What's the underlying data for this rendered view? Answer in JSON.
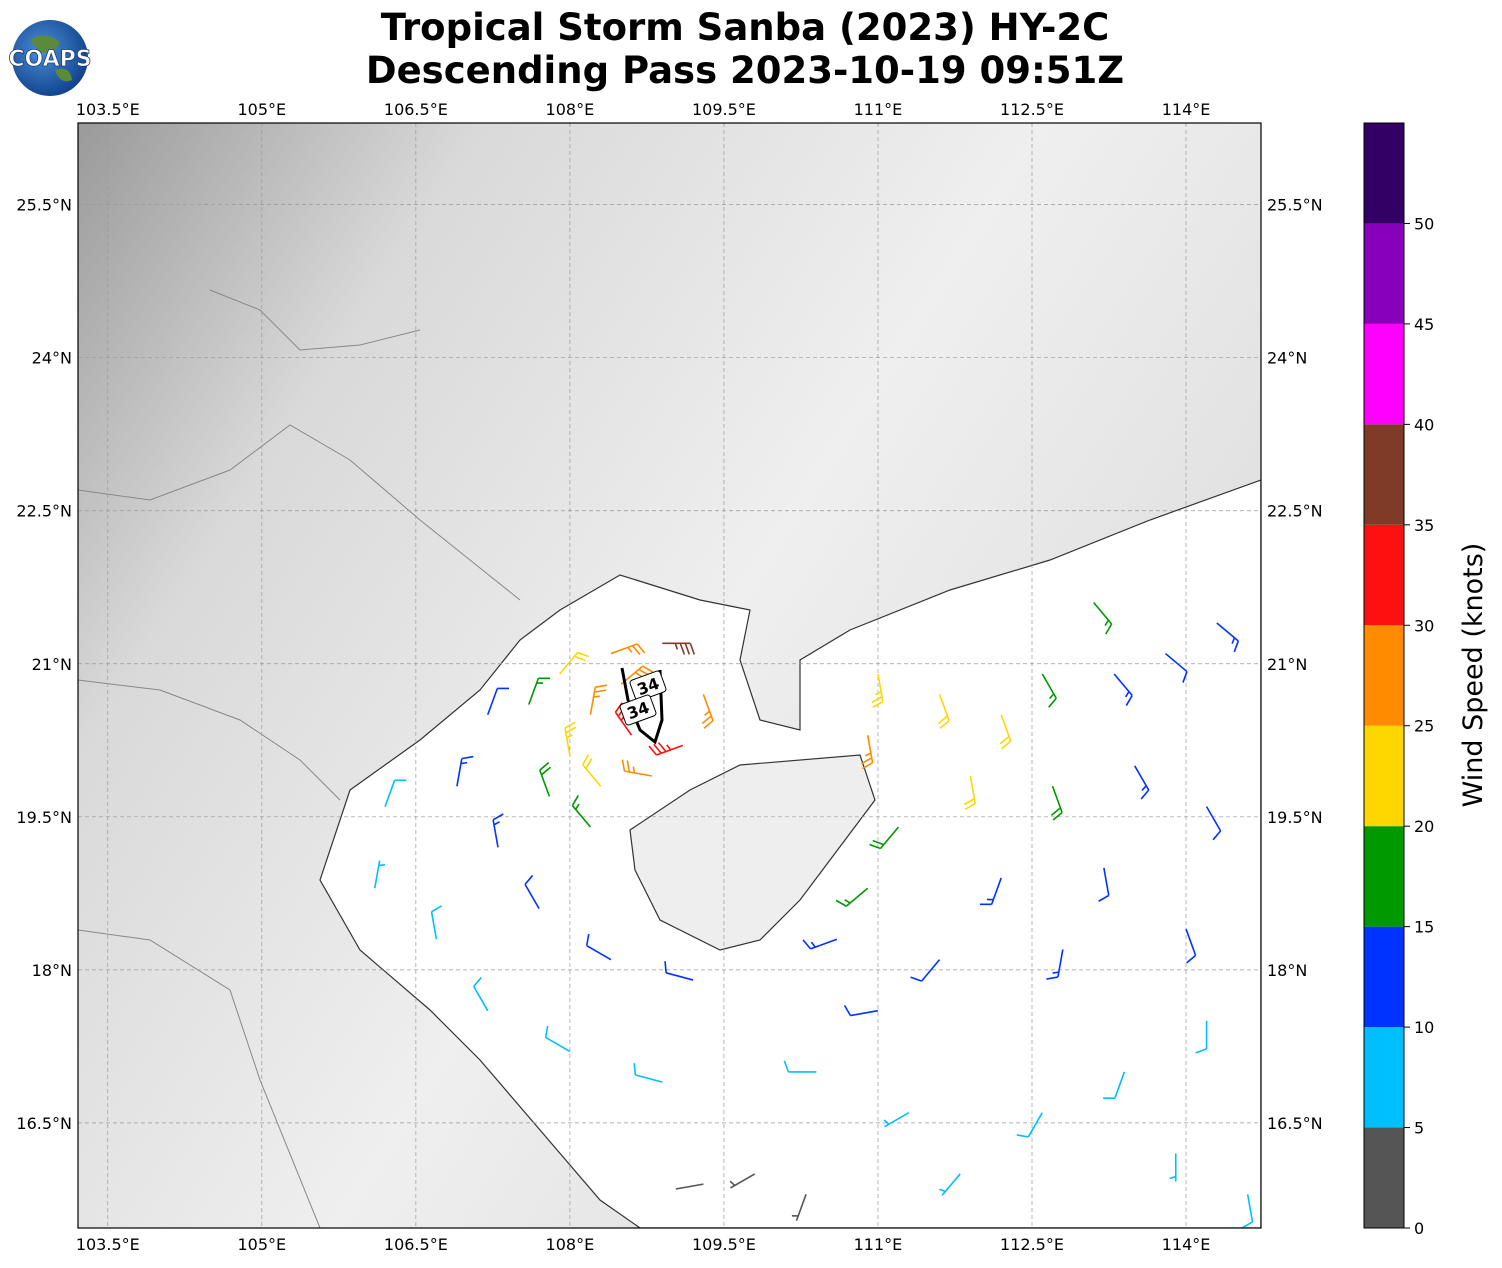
{
  "logo": "COAPS",
  "chart_data": {
    "type": "wind-barbs",
    "title": "Tropical Storm Sanba (2023) HY-2C",
    "subtitle": "Descending Pass 2023-10-19 09:51Z",
    "xlim": [
      103.21,
      114.73
    ],
    "ylim": [
      15.47,
      26.3
    ],
    "xticks": [
      {
        "value": 103.5,
        "label": "103.5°E"
      },
      {
        "value": 105,
        "label": "105°E"
      },
      {
        "value": 106.5,
        "label": "106.5°E"
      },
      {
        "value": 108,
        "label": "108°E"
      },
      {
        "value": 109.5,
        "label": "109.5°E"
      },
      {
        "value": 111,
        "label": "111°E"
      },
      {
        "value": 112.5,
        "label": "112.5°E"
      },
      {
        "value": 114,
        "label": "114°E"
      }
    ],
    "yticks": [
      {
        "value": 16.5,
        "label": "16.5°N"
      },
      {
        "value": 18,
        "label": "18°N"
      },
      {
        "value": 19.5,
        "label": "19.5°N"
      },
      {
        "value": 21,
        "label": "21°N"
      },
      {
        "value": 22.5,
        "label": "22.5°N"
      },
      {
        "value": 24,
        "label": "24°N"
      },
      {
        "value": 25.5,
        "label": "25.5°N"
      }
    ],
    "grid": true,
    "wind_radius_labels": [
      34,
      34
    ],
    "colorbar": {
      "label": "Wind Speed (knots)",
      "lim": [
        0,
        55
      ],
      "ticks": [
        0,
        5,
        10,
        15,
        20,
        25,
        30,
        35,
        40,
        45,
        50
      ],
      "bounds": [
        0,
        5,
        10,
        15,
        20,
        25,
        30,
        35,
        40,
        45,
        50,
        55
      ],
      "colors": [
        "#555555",
        "#00bfff",
        "#0033ff",
        "#009900",
        "#ffd700",
        "#ff8c00",
        "#ff1010",
        "#7f3a28",
        "#ff00ff",
        "#8800bb",
        "#330066"
      ]
    },
    "barbs": {
      "lon": [
        108.6,
        109.1,
        108.5,
        109.3,
        108.4,
        108.9,
        108.2,
        108.8,
        107.9,
        108.0,
        108.3,
        107.6,
        107.8,
        108.2,
        107.2,
        106.9,
        107.3,
        107.7,
        108.4,
        109.2,
        106.2,
        106.1,
        106.7,
        107.2,
        108.0,
        108.9,
        109.8,
        110.3,
        109.3,
        110.4,
        111.0,
        110.6,
        110.9,
        111.2,
        111.0,
        111.6,
        112.2,
        111.9,
        110.9,
        112.6,
        113.1,
        112.7,
        113.3,
        113.8,
        114.3,
        113.5,
        114.2,
        113.2,
        114.0,
        112.8,
        112.2,
        111.6,
        114.2,
        113.4,
        112.6,
        113.9,
        111.8,
        114.6,
        111.3
      ],
      "lat": [
        20.3,
        20.2,
        20.8,
        20.7,
        21.1,
        21.2,
        20.5,
        19.9,
        20.9,
        20.1,
        19.8,
        20.6,
        19.7,
        19.4,
        20.5,
        19.8,
        19.2,
        18.6,
        18.1,
        17.9,
        19.6,
        18.8,
        18.3,
        17.6,
        17.2,
        16.9,
        16.0,
        15.8,
        15.9,
        17.0,
        17.6,
        18.3,
        18.8,
        19.4,
        20.9,
        20.7,
        20.5,
        19.9,
        20.3,
        20.9,
        21.6,
        19.8,
        20.9,
        21.1,
        21.4,
        20.0,
        19.6,
        19.0,
        18.4,
        18.2,
        18.9,
        18.1,
        17.5,
        17.0,
        16.6,
        16.2,
        16.0,
        15.8,
        16.6
      ],
      "speed": [
        32,
        33,
        28,
        27,
        27,
        37,
        25,
        26,
        22,
        23,
        22,
        17,
        18,
        17,
        12,
        13,
        13,
        12,
        11,
        12,
        8,
        7,
        8,
        9,
        8,
        8,
        3,
        4,
        2,
        9,
        11,
        13,
        16,
        18,
        23,
        22,
        21,
        22,
        26,
        17,
        16,
        18,
        13,
        12,
        13,
        13,
        12,
        12,
        11,
        13,
        14,
        12,
        8,
        9,
        8,
        7,
        6,
        9,
        7
      ],
      "direction": [
        325,
        250,
        50,
        160,
        70,
        90,
        10,
        280,
        40,
        350,
        320,
        20,
        340,
        320,
        20,
        10,
        350,
        330,
        300,
        285,
        20,
        10,
        350,
        330,
        300,
        285,
        240,
        200,
        260,
        270,
        260,
        250,
        230,
        220,
        170,
        160,
        160,
        170,
        170,
        150,
        140,
        160,
        140,
        130,
        130,
        150,
        150,
        170,
        160,
        190,
        200,
        220,
        180,
        200,
        210,
        180,
        220,
        170,
        240
      ]
    }
  }
}
